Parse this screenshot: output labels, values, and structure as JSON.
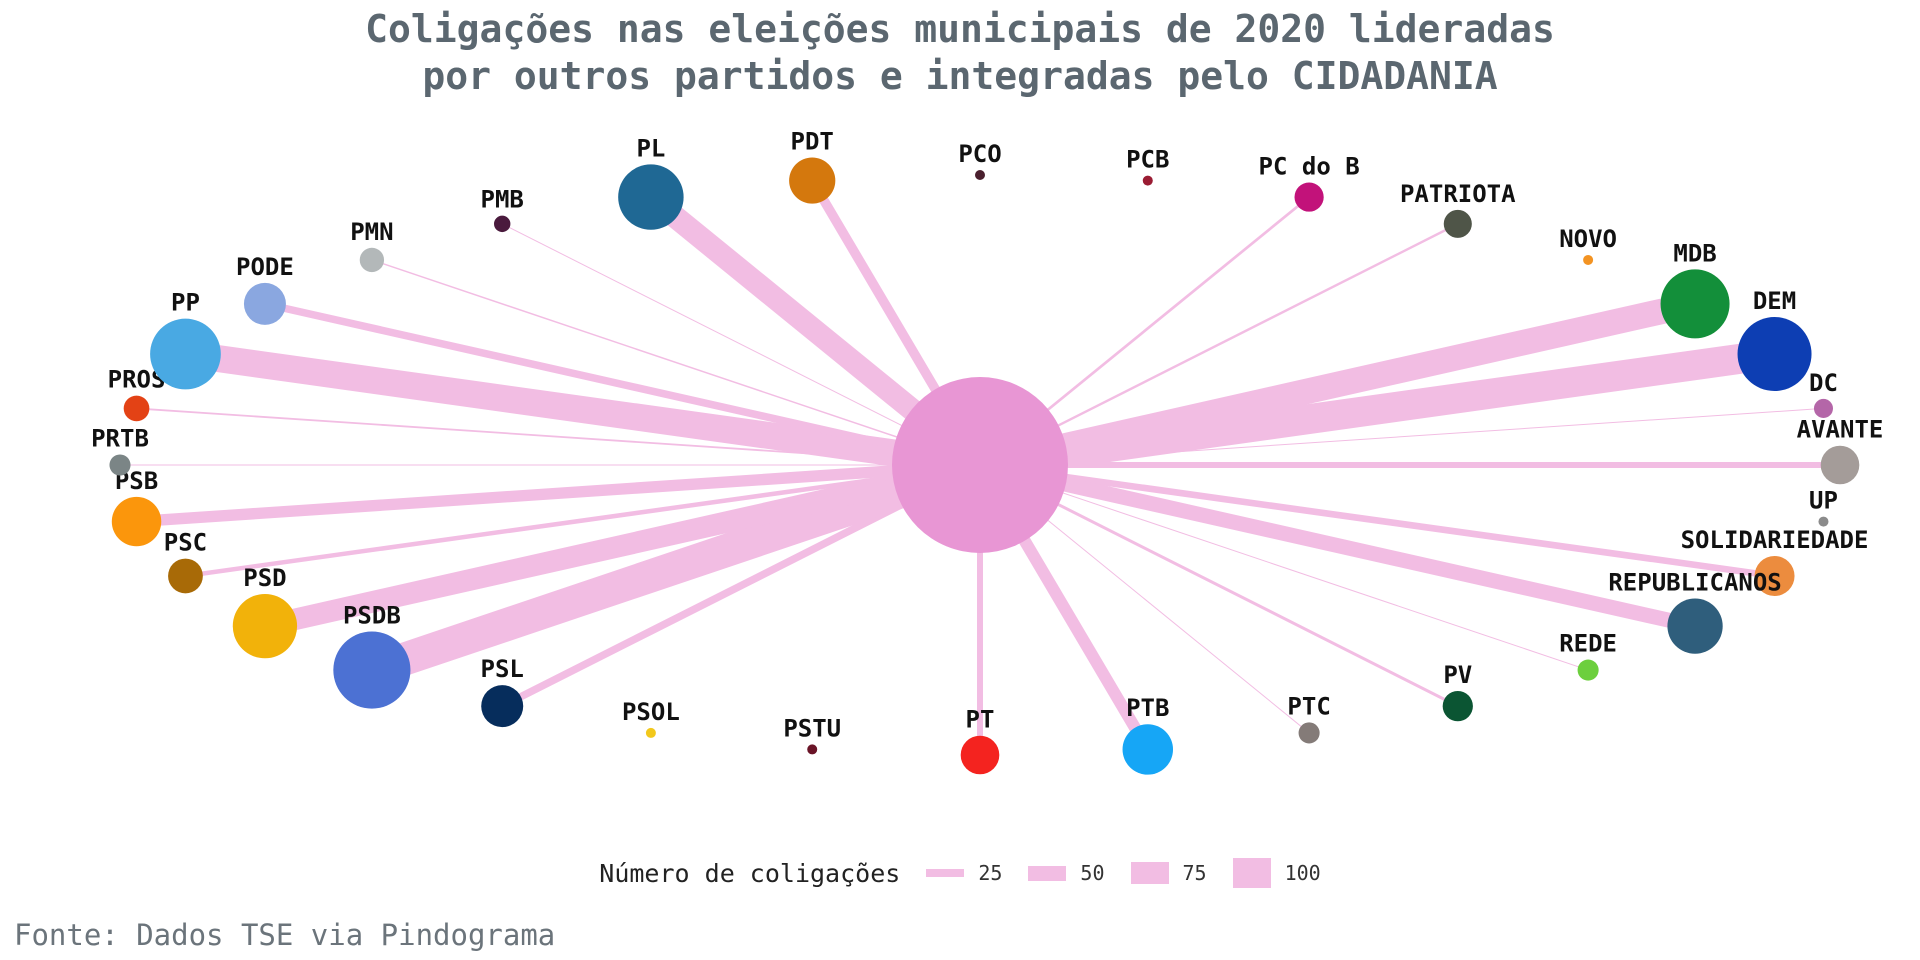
{
  "title": {
    "line1": "Coligações nas eleições municipais de 2020 lideradas",
    "line2": "por outros partidos e integradas pelo CIDADANIA"
  },
  "source": "Fonte: Dados TSE via Pindograma",
  "colors": {
    "edge": "#f2bde3",
    "center": "#e896d4"
  },
  "legend": {
    "title": "Número de coligações",
    "items": [
      {
        "label": "25",
        "value": 25
      },
      {
        "label": "50",
        "value": 50
      },
      {
        "label": "75",
        "value": 75
      },
      {
        "label": "100",
        "value": 100
      }
    ]
  },
  "nodes": [
    {
      "name": "PCO",
      "color": "#4a1f2e",
      "count": 0
    },
    {
      "name": "PCB",
      "color": "#9a1c33",
      "count": 0
    },
    {
      "name": "PC do B",
      "color": "#c2127a",
      "count": 9
    },
    {
      "name": "PATRIOTA",
      "color": "#4f5548",
      "count": 8
    },
    {
      "name": "NOVO",
      "color": "#f39322",
      "count": 0
    },
    {
      "name": "MDB",
      "color": "#138f3a",
      "count": 85
    },
    {
      "name": "DEM",
      "color": "#0d3eb3",
      "count": 100
    },
    {
      "name": "DC",
      "color": "#b466a8",
      "count": 2
    },
    {
      "name": "AVANTE",
      "color": "#a49c99",
      "count": 20
    },
    {
      "name": "UP",
      "color": "#8b8b8b",
      "count": 0
    },
    {
      "name": "SOLIDARIEDADE",
      "color": "#ec8c3e",
      "count": 22
    },
    {
      "name": "REPUBLICANOS",
      "color": "#2f5e7c",
      "count": 50
    },
    {
      "name": "REDE",
      "color": "#6ccf3d",
      "count": 3
    },
    {
      "name": "PV",
      "color": "#0b5533",
      "count": 10
    },
    {
      "name": "PTC",
      "color": "#847b78",
      "count": 3
    },
    {
      "name": "PTB",
      "color": "#16a6f6",
      "count": 40
    },
    {
      "name": "PT",
      "color": "#f4231f",
      "count": 20
    },
    {
      "name": "PSTU",
      "color": "#6a1427",
      "count": 0
    },
    {
      "name": "PSOL",
      "color": "#f2c81c",
      "count": 0
    },
    {
      "name": "PSL",
      "color": "#062d5c",
      "count": 25
    },
    {
      "name": "PSDB",
      "color": "#4c71d3",
      "count": 110
    },
    {
      "name": "PSD",
      "color": "#f2b20a",
      "count": 72
    },
    {
      "name": "PSC",
      "color": "#a86a07",
      "count": 15
    },
    {
      "name": "PSB",
      "color": "#fb960c",
      "count": 38
    },
    {
      "name": "PRTB",
      "color": "#7b8586",
      "count": 3
    },
    {
      "name": "PROS",
      "color": "#e34215",
      "count": 6
    },
    {
      "name": "PP",
      "color": "#49a9e3",
      "count": 90
    },
    {
      "name": "PODE",
      "color": "#8aa7e0",
      "count": 25
    },
    {
      "name": "PMN",
      "color": "#b3b8b9",
      "count": 5
    },
    {
      "name": "PMB",
      "color": "#4a1a3d",
      "count": 1
    },
    {
      "name": "PL",
      "color": "#1f6894",
      "count": 75
    },
    {
      "name": "PDT",
      "color": "#d4780d",
      "count": 32
    }
  ]
}
